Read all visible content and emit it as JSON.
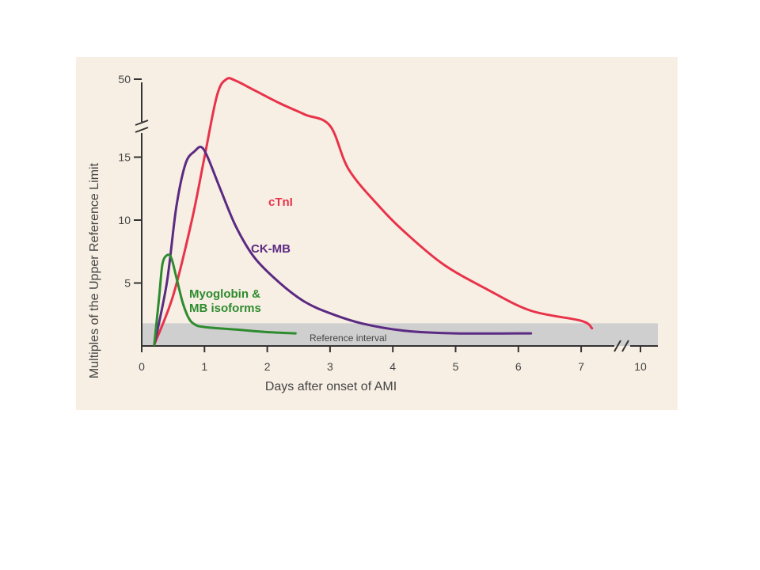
{
  "chart_data": {
    "type": "line",
    "xlabel": "Days after onset of AMI",
    "ylabel": "Multiples of the Upper Reference Limit",
    "x_ticks": [
      "0",
      "1",
      "2",
      "3",
      "4",
      "5",
      "6",
      "7",
      "10"
    ],
    "y_ticks": [
      "5",
      "10",
      "15",
      "50"
    ],
    "xlim": [
      0,
      10
    ],
    "ylim": [
      0,
      50
    ],
    "x_axis_break": [
      7.5,
      9.5
    ],
    "y_axis_break": [
      17,
      45
    ],
    "grid": false,
    "legend": "none",
    "reference_interval": {
      "label": "Reference interval",
      "y_min": 0,
      "y_max": 1.8
    },
    "series": [
      {
        "name": "cTnI",
        "color": "#e8334a",
        "x": [
          0.2,
          0.5,
          0.8,
          1.0,
          1.2,
          1.35,
          1.5,
          1.8,
          2.2,
          2.6,
          3.0,
          3.3,
          3.8,
          4.2,
          4.8,
          5.5,
          6.2,
          7.0,
          7.55
        ],
        "y": [
          0.1,
          4,
          10,
          15,
          40,
          50,
          49,
          43,
          35,
          28,
          21,
          14,
          11,
          9,
          6.5,
          4.5,
          2.8,
          2.0,
          1.4
        ]
      },
      {
        "name": "CK-MB",
        "color": "#5b2a82",
        "x": [
          0.2,
          0.4,
          0.55,
          0.7,
          0.85,
          0.95,
          1.05,
          1.25,
          1.5,
          1.8,
          2.2,
          2.6,
          3.0,
          3.5,
          4.2,
          5.0,
          6.2
        ],
        "y": [
          0.1,
          5,
          11,
          14.5,
          15.5,
          15.8,
          15,
          12.5,
          9.5,
          7,
          5,
          3.5,
          2.6,
          1.8,
          1.2,
          1.0,
          1.0
        ]
      },
      {
        "name": "Myoglobin & MB isoforms",
        "color": "#2e8b2e",
        "x": [
          0.2,
          0.28,
          0.33,
          0.4,
          0.47,
          0.55,
          0.65,
          0.75,
          0.85,
          1.0,
          1.5,
          2.0,
          2.45
        ],
        "y": [
          0.1,
          4,
          6.5,
          7.2,
          7.0,
          5.5,
          3.5,
          2.2,
          1.7,
          1.5,
          1.3,
          1.1,
          1.0
        ]
      }
    ]
  }
}
